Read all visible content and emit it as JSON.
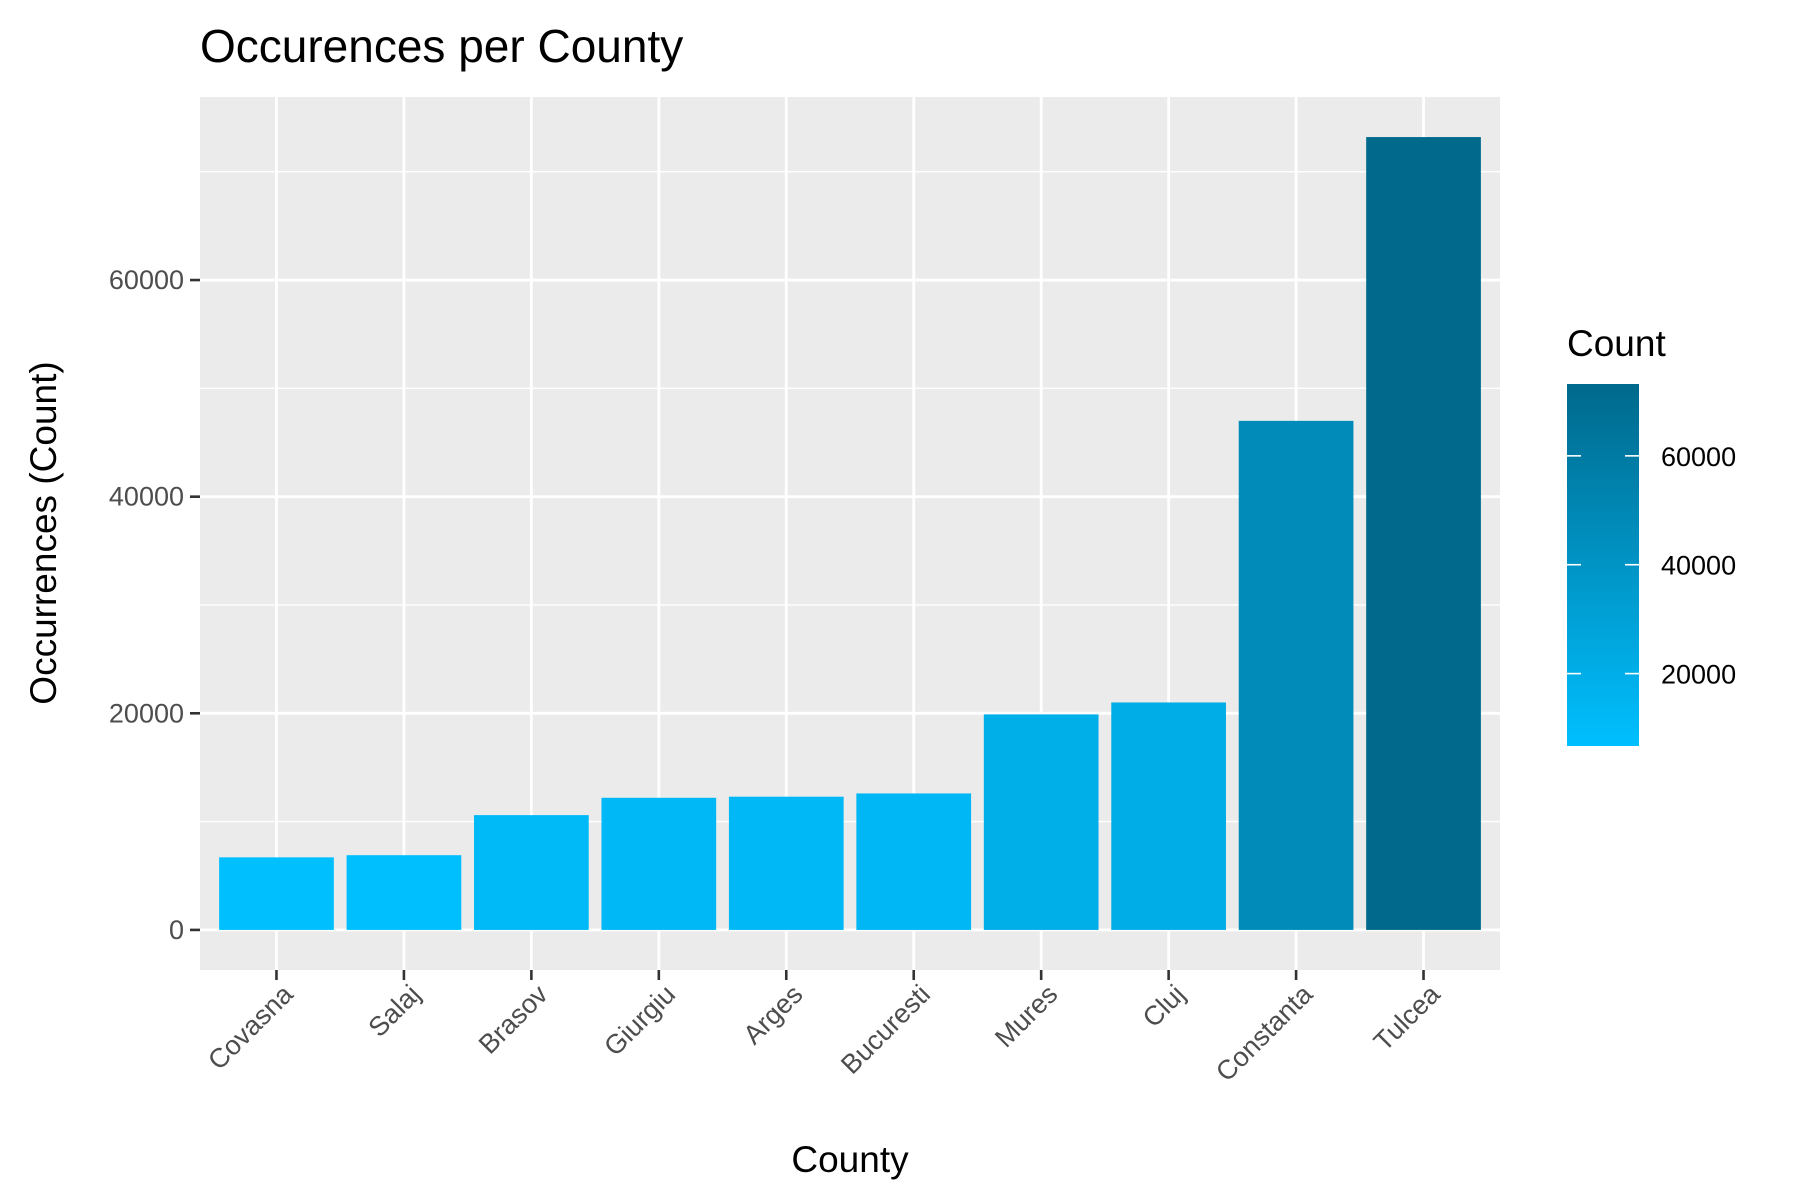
{
  "chart_data": {
    "type": "bar",
    "title": "Occurences per County",
    "xlabel": "County",
    "ylabel": "Occurrences (Count)",
    "categories": [
      "Covasna",
      "Salaj",
      "Brasov",
      "Giurgiu",
      "Arges",
      "Bucuresti",
      "Mures",
      "Cluj",
      "Constanta",
      "Tulcea"
    ],
    "values": [
      6700,
      6900,
      10600,
      12200,
      12300,
      12600,
      19900,
      21000,
      47000,
      73200
    ],
    "ylim": [
      -3700,
      76900
    ],
    "yticks": [
      0,
      20000,
      40000,
      60000
    ],
    "ytick_labels": [
      "0",
      "20000",
      "40000",
      "60000"
    ],
    "grid": true,
    "panel_background": "#ebebeb",
    "legend": {
      "title": "Count",
      "placement": "right",
      "color_low": "#00bfff",
      "color_high": "#00698c",
      "range": [
        6700,
        73200
      ],
      "ticks": [
        20000,
        40000,
        60000
      ],
      "tick_labels": [
        "20000",
        "40000",
        "60000"
      ]
    }
  }
}
